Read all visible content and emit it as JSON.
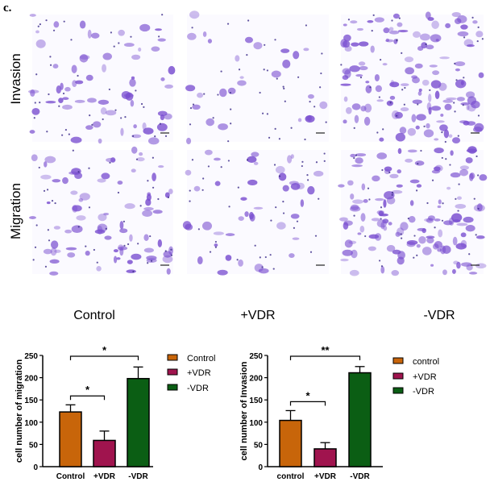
{
  "panel_label": "c.",
  "micrographs": {
    "rows": [
      "Invasion",
      "Migration"
    ],
    "columns": [
      "Control",
      "+VDR",
      "-VDR"
    ],
    "stain_color": "#7a4fd0",
    "cell_density": [
      [
        0.45,
        0.2,
        0.9
      ],
      [
        0.55,
        0.3,
        0.9
      ]
    ]
  },
  "chart_data": [
    {
      "type": "bar",
      "categories": [
        "Control",
        "+VDR",
        "-VDR"
      ],
      "values": [
        123,
        59,
        198
      ],
      "errors": [
        16,
        21,
        26
      ],
      "colors": [
        "#c8650a",
        "#a0144e",
        "#0b5e14"
      ],
      "ylabel": "cell number of migration",
      "xlabel": "",
      "ylim": [
        0,
        250
      ],
      "yticks": [
        0,
        50,
        100,
        150,
        200,
        250
      ],
      "legend": [
        "Control",
        "+VDR",
        "-VDR"
      ],
      "legend_position": "right",
      "significance": [
        {
          "from": "Control",
          "to": "-VDR",
          "label": "*"
        },
        {
          "from": "Control",
          "to": "+VDR",
          "label": "*"
        }
      ]
    },
    {
      "type": "bar",
      "categories": [
        "control",
        "+VDR",
        "-VDR"
      ],
      "values": [
        104,
        40,
        211
      ],
      "errors": [
        22,
        14,
        14
      ],
      "colors": [
        "#c8650a",
        "#a0144e",
        "#0b5e14"
      ],
      "ylabel": "cell number of Invasion",
      "xlabel": "",
      "ylim": [
        0,
        250
      ],
      "yticks": [
        0,
        50,
        100,
        150,
        200,
        250
      ],
      "legend": [
        "control",
        "+VDR",
        "-VDR"
      ],
      "legend_position": "right",
      "significance": [
        {
          "from": "control",
          "to": "-VDR",
          "label": "**"
        },
        {
          "from": "control",
          "to": "+VDR",
          "label": "*"
        }
      ]
    }
  ]
}
